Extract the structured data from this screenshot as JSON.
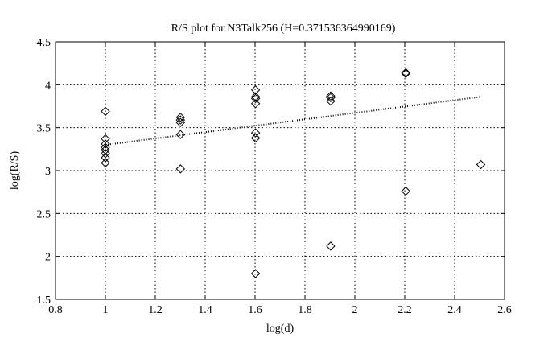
{
  "chart_data": {
    "type": "scatter",
    "title": "R/S plot for N3Talk256 (H=0.371536364990169)",
    "xlabel": "log(d)",
    "ylabel": "log(R/S)",
    "xlim": [
      0.8,
      2.6
    ],
    "ylim": [
      1.5,
      4.5
    ],
    "xticks": [
      0.8,
      1.0,
      1.2,
      1.4,
      1.6,
      1.8,
      2.0,
      2.2,
      2.4,
      2.6
    ],
    "yticks": [
      1.5,
      2.0,
      2.5,
      3.0,
      3.5,
      4.0,
      4.5
    ],
    "xtick_labels": [
      "0.8",
      "1",
      "1.2",
      "1.4",
      "1.6",
      "1.8",
      "2",
      "2.2",
      "2.4",
      "2.6"
    ],
    "ytick_labels": [
      "1.5",
      "2",
      "2.5",
      "3",
      "3.5",
      "4",
      "4.5"
    ],
    "grid": true,
    "marker": "diamond",
    "marker_color": "#000000",
    "points": [
      {
        "x": 1.0,
        "y": 3.69
      },
      {
        "x": 1.0,
        "y": 3.37
      },
      {
        "x": 1.0,
        "y": 3.31
      },
      {
        "x": 1.0,
        "y": 3.27
      },
      {
        "x": 1.0,
        "y": 3.24
      },
      {
        "x": 1.0,
        "y": 3.2
      },
      {
        "x": 1.0,
        "y": 3.15
      },
      {
        "x": 1.0,
        "y": 3.09
      },
      {
        "x": 1.301,
        "y": 3.62
      },
      {
        "x": 1.301,
        "y": 3.59
      },
      {
        "x": 1.301,
        "y": 3.56
      },
      {
        "x": 1.301,
        "y": 3.42
      },
      {
        "x": 1.301,
        "y": 3.02
      },
      {
        "x": 1.602,
        "y": 3.94
      },
      {
        "x": 1.602,
        "y": 3.86
      },
      {
        "x": 1.602,
        "y": 3.84
      },
      {
        "x": 1.602,
        "y": 3.78
      },
      {
        "x": 1.602,
        "y": 3.44
      },
      {
        "x": 1.602,
        "y": 3.38
      },
      {
        "x": 1.602,
        "y": 1.8
      },
      {
        "x": 1.903,
        "y": 3.87
      },
      {
        "x": 1.903,
        "y": 3.85
      },
      {
        "x": 1.903,
        "y": 3.81
      },
      {
        "x": 1.903,
        "y": 2.12
      },
      {
        "x": 2.204,
        "y": 4.14
      },
      {
        "x": 2.204,
        "y": 4.13
      },
      {
        "x": 2.204,
        "y": 2.76
      },
      {
        "x": 2.505,
        "y": 3.07
      }
    ],
    "fit_line": {
      "style": "dotted",
      "x": [
        1.0,
        2.505
      ],
      "y": [
        3.3,
        3.86
      ]
    }
  }
}
